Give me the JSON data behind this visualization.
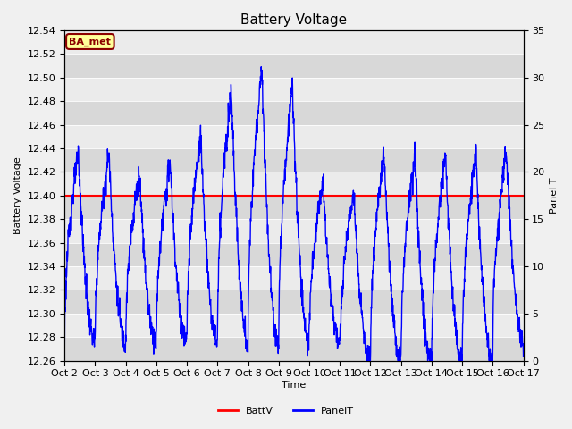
{
  "title": "Battery Voltage",
  "xlabel": "Time",
  "ylabel_left": "Battery Voltage",
  "ylabel_right": "Panel T",
  "ylim_left": [
    12.26,
    12.54
  ],
  "ylim_right": [
    0,
    35
  ],
  "xlim": [
    0,
    15
  ],
  "x_tick_labels": [
    "Oct 2",
    "Oct 3",
    "Oct 4",
    "Oct 5",
    "Oct 6",
    "Oct 7",
    "Oct 8",
    "Oct 9",
    "Oct 10",
    "Oct 11",
    "Oct 12",
    "Oct 13",
    "Oct 14",
    "Oct 15",
    "Oct 16",
    "Oct 17"
  ],
  "battv_value": 12.4,
  "battv_color": "#ff0000",
  "panelt_color": "#0000ff",
  "bg_color": "#f0f0f0",
  "plot_bg_light": "#ebebeb",
  "plot_bg_dark": "#d8d8d8",
  "label_box_text": "BA_met",
  "label_box_facecolor": "#ffff99",
  "label_box_edgecolor": "#8b0000",
  "legend_labels": [
    "BattV",
    "PanelT"
  ],
  "title_fontsize": 11,
  "axis_label_fontsize": 8,
  "tick_fontsize": 8,
  "yticks_left": [
    12.26,
    12.28,
    12.3,
    12.32,
    12.34,
    12.36,
    12.38,
    12.4,
    12.42,
    12.44,
    12.46,
    12.48,
    12.5,
    12.52,
    12.54
  ],
  "yticks_right": [
    0,
    5,
    10,
    15,
    20,
    25,
    30,
    35
  ]
}
